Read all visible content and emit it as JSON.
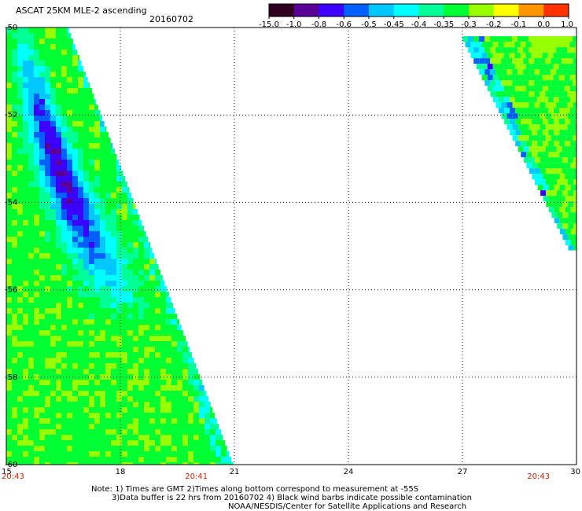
{
  "chart_data": {
    "type": "heatmap",
    "title": "ASCAT 25KM MLE-2 ascending",
    "date": "20160702",
    "colorbar": {
      "tick_labels": [
        "-15.0",
        "-1.0",
        "-0.8",
        "-0.6",
        "-0.5",
        "-0.45",
        "-0.4",
        "-0.35",
        "-0.3",
        "-0.2",
        "-0.1",
        "0.0",
        "1.0"
      ],
      "colors": [
        "#30001e",
        "#5a0096",
        "#3c00ff",
        "#0060ff",
        "#00c8ff",
        "#00ffff",
        "#00ff96",
        "#00ff32",
        "#96ff00",
        "#ffff00",
        "#ff9600",
        "#ff3200"
      ]
    },
    "x_ticks": [
      "15",
      "18",
      "21",
      "24",
      "27",
      "30"
    ],
    "y_ticks": [
      "-50",
      "-52",
      "-54",
      "-56",
      "-58",
      "-60"
    ],
    "xlim": [
      15,
      30
    ],
    "ylim": [
      -60,
      -50
    ],
    "grid": true,
    "time_labels": [
      {
        "lon": 15,
        "text": "20:43"
      },
      {
        "lon": 20,
        "text": "20:41"
      },
      {
        "lon": 29,
        "text": "20:43"
      }
    ],
    "swaths": [
      {
        "name": "west",
        "edge_top_lon": 16.65,
        "edge_bottom_lon": 21.0,
        "lat_top": -50,
        "lat_bottom": -60
      },
      {
        "name": "east",
        "edge_top_lon": 27.0,
        "edge_bottom_lon": 29.85,
        "lat_top": -50.2,
        "lat_bottom": -55.1
      }
    ]
  },
  "notes": [
    "Note: 1) Times are GMT 2)Times along bottom correspond to measurement at -55S",
    "3)Data buffer is 22 hrs from 20160702 4) Black wind barbs indicate possible contamination",
    "NOAA/NESDIS/Center for Satellite Applications and Research"
  ]
}
